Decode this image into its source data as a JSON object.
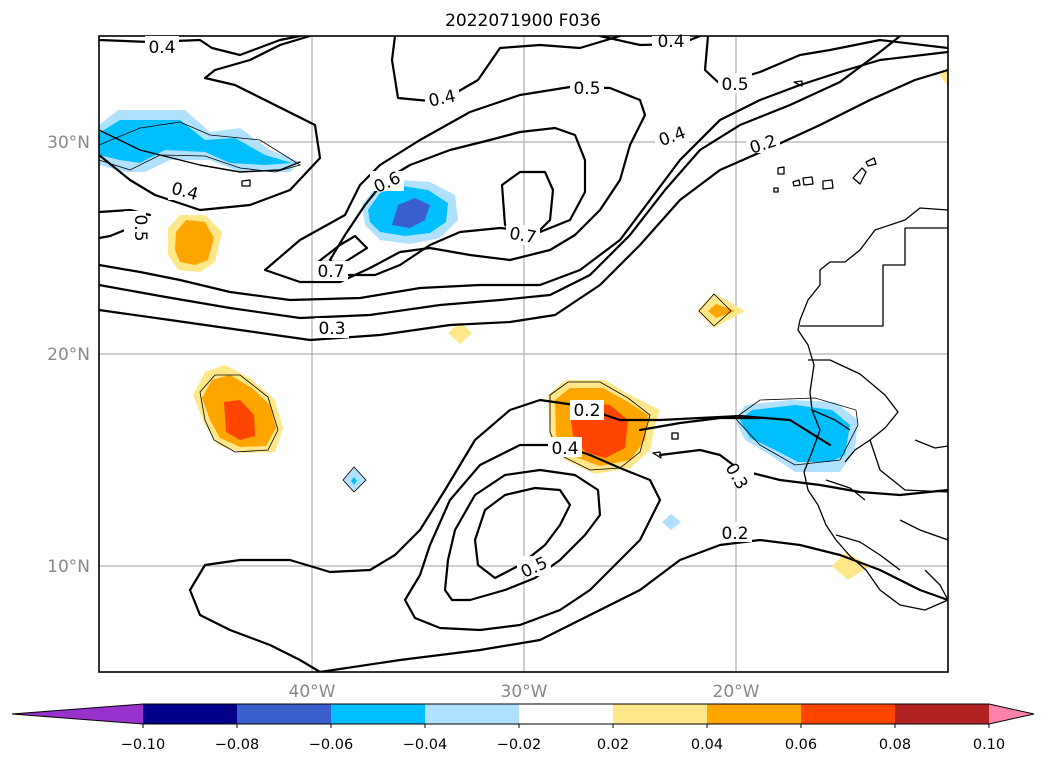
{
  "title": "2022071900 F036",
  "axes": {
    "lat_ticks": [
      "30°N",
      "20°N",
      "10°N"
    ],
    "lon_ticks": [
      "40°W",
      "30°W",
      "20°W"
    ],
    "lon_range": [
      -50,
      -10
    ],
    "lat_range": [
      5,
      35
    ],
    "grid": true
  },
  "colorbar": {
    "orientation": "horizontal",
    "extend": "both",
    "levels": [
      -0.1,
      -0.08,
      -0.06,
      -0.04,
      -0.02,
      0.02,
      0.04,
      0.06,
      0.08,
      0.1
    ],
    "tick_labels": [
      "−0.10",
      "−0.08",
      "−0.06",
      "−0.04",
      "−0.02",
      "0.02",
      "0.04",
      "0.06",
      "0.08",
      "0.10"
    ],
    "colors": [
      "#9932CC",
      "#00008B",
      "#3A5FCD",
      "#00BFFF",
      "#B0E2FF",
      "#FFFFFF",
      "#FFE78A",
      "#FFA500",
      "#FF4500",
      "#B22222",
      "#FF82AB"
    ]
  },
  "contour_labels": [
    "0.4",
    "0.4",
    "0.4",
    "0.5",
    "0.5",
    "0.4",
    "0.2",
    "0.4",
    "0.5",
    "0.6",
    "0.7",
    "0.7",
    "0.3",
    "0.2",
    "0.4",
    "0.3",
    "0.2",
    "0.5"
  ]
}
